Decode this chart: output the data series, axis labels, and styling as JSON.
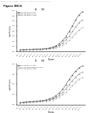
{
  "header_text": "Patent Application Publication    May 5, 2011   Sheet 1 of 14   US 2011/0104134 A1",
  "figure_label": "Figure 88(1)",
  "panel_a_label": "A       88",
  "panel_b_label": "B       88",
  "subplot1": {
    "xlabel": "Dilution",
    "ylabel": "specific lysis",
    "ylim": [
      100,
      900
    ],
    "yticks": [
      100,
      200,
      300,
      400,
      500,
      600,
      700,
      800,
      900
    ],
    "x_labels": [
      "E:T=5",
      "E:T=10",
      "E:T=15",
      "E:T=20",
      "E:T=25",
      "E:T=30",
      "E:T=35",
      "E:T=40",
      "E:T=45",
      "E:T=50",
      "E:T=55",
      "E:T=60",
      "E:T=65",
      "E:T=70",
      "E:T=75",
      "E:T=80",
      "E:T=85",
      "E:T=90",
      "E:T=95",
      "E:T=100"
    ],
    "series": [
      {
        "label": "PSMAxCD3 (h/h) 0.17nM",
        "marker": "s",
        "linestyle": "--",
        "color": "#000000",
        "values": [
          130,
          135,
          138,
          140,
          142,
          145,
          148,
          152,
          158,
          168,
          185,
          210,
          250,
          310,
          390,
          490,
          600,
          720,
          820,
          880
        ]
      },
      {
        "label": "PSMAxCD3 (h/m) 0.17nM",
        "marker": "o",
        "linestyle": "--",
        "color": "#555555",
        "values": [
          128,
          132,
          135,
          137,
          140,
          142,
          145,
          148,
          153,
          160,
          172,
          192,
          220,
          265,
          325,
          400,
          490,
          580,
          660,
          720
        ]
      },
      {
        "label": "PSMAxCD3 (m/m) 0.17nM",
        "marker": "^",
        "linestyle": "--",
        "color": "#888888",
        "values": [
          125,
          128,
          130,
          132,
          134,
          136,
          138,
          141,
          145,
          151,
          160,
          174,
          196,
          226,
          268,
          320,
          385,
          455,
          520,
          570
        ]
      }
    ]
  },
  "subplot2": {
    "xlabel": "Dilution",
    "ylabel": "specific lysis",
    "ylim": [
      100,
      500
    ],
    "yticks": [
      100,
      200,
      300,
      400,
      500
    ],
    "x_labels": [
      "E:T=5",
      "E:T=10",
      "E:T=15",
      "E:T=20",
      "E:T=25",
      "E:T=30",
      "E:T=35",
      "E:T=40",
      "E:T=45",
      "E:T=50",
      "E:T=55",
      "E:T=60",
      "E:T=65",
      "E:T=70",
      "E:T=75",
      "E:T=80",
      "E:T=85",
      "E:T=90",
      "E:T=95",
      "E:T=100"
    ],
    "series": [
      {
        "label": "PSMAxCD3 (h/h) 0.17nM",
        "marker": "s",
        "linestyle": "--",
        "color": "#000000",
        "values": [
          120,
          123,
          126,
          128,
          130,
          133,
          136,
          140,
          146,
          155,
          168,
          188,
          215,
          250,
          295,
          345,
          390,
          430,
          460,
          480
        ]
      },
      {
        "label": "PSMAxCD3 (h/m) bispecific 0.17nM",
        "marker": "o",
        "linestyle": "--",
        "color": "#555555",
        "values": [
          118,
          121,
          123,
          125,
          127,
          130,
          133,
          136,
          140,
          147,
          157,
          171,
          192,
          220,
          255,
          295,
          335,
          370,
          400,
          420
        ]
      },
      {
        "label": "PSMAxCD3 (m/m) 0.17nM",
        "marker": "^",
        "linestyle": "--",
        "color": "#888888",
        "values": [
          116,
          118,
          120,
          122,
          124,
          126,
          128,
          131,
          134,
          139,
          147,
          158,
          174,
          196,
          222,
          254,
          288,
          320,
          348,
          368
        ]
      }
    ]
  },
  "background_color": "#ffffff"
}
